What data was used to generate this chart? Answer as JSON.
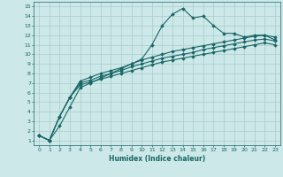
{
  "xlabel": "Humidex (Indice chaleur)",
  "bg_color": "#cce8e8",
  "grid_color": "#aacccc",
  "line_color": "#1a6666",
  "xlim": [
    -0.5,
    23.5
  ],
  "ylim": [
    0.5,
    15.5
  ],
  "xticks": [
    0,
    1,
    2,
    3,
    4,
    5,
    6,
    7,
    8,
    9,
    10,
    11,
    12,
    13,
    14,
    15,
    16,
    17,
    18,
    19,
    20,
    21,
    22,
    23
  ],
  "yticks": [
    1,
    2,
    3,
    4,
    5,
    6,
    7,
    8,
    9,
    10,
    11,
    12,
    13,
    14,
    15
  ],
  "line_peak": [
    1.5,
    1.0,
    2.5,
    4.5,
    6.5,
    7.0,
    7.5,
    8.0,
    8.5,
    9.0,
    9.5,
    11.0,
    13.0,
    14.2,
    14.8,
    13.8,
    14.0,
    13.0,
    12.2,
    12.2,
    11.8,
    12.0,
    12.0,
    11.5
  ],
  "line_upper": [
    1.5,
    1.0,
    3.5,
    5.5,
    7.2,
    7.6,
    8.0,
    8.3,
    8.6,
    9.0,
    9.4,
    9.7,
    10.0,
    10.3,
    10.5,
    10.7,
    10.9,
    11.1,
    11.3,
    11.5,
    11.7,
    11.9,
    12.0,
    11.8
  ],
  "line_mid": [
    1.5,
    1.0,
    3.5,
    5.5,
    7.0,
    7.3,
    7.7,
    8.0,
    8.3,
    8.7,
    9.0,
    9.3,
    9.6,
    9.8,
    10.0,
    10.2,
    10.5,
    10.7,
    10.9,
    11.1,
    11.3,
    11.5,
    11.6,
    11.4
  ],
  "line_lower": [
    1.5,
    1.0,
    3.5,
    5.5,
    6.8,
    7.1,
    7.4,
    7.7,
    8.0,
    8.3,
    8.6,
    8.9,
    9.2,
    9.4,
    9.6,
    9.8,
    10.0,
    10.2,
    10.4,
    10.6,
    10.8,
    11.0,
    11.2,
    11.0
  ]
}
